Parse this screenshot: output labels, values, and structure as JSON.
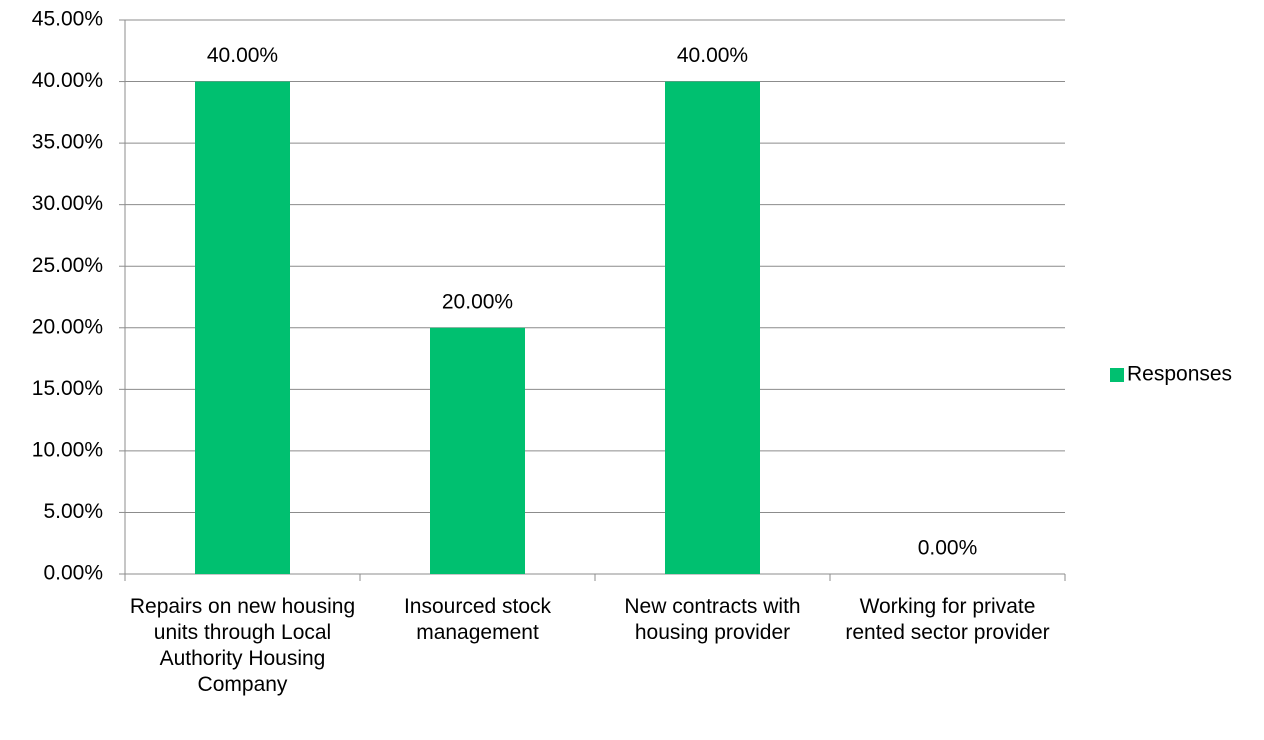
{
  "chart_data": {
    "type": "bar",
    "categories": [
      "Repairs on new housing units through Local Authority Housing Company",
      "Insourced stock management",
      "New contracts with housing provider",
      "Working for private rented sector provider"
    ],
    "series": [
      {
        "name": "Responses",
        "color": "#00c070",
        "values": [
          40,
          20,
          40,
          0
        ],
        "value_labels": [
          "40.00%",
          "20.00%",
          "40.00%",
          "0.00%"
        ]
      }
    ],
    "ylim": [
      0,
      45
    ],
    "yticks": [
      {
        "value": 0,
        "label": "0.00%"
      },
      {
        "value": 5,
        "label": "5.00%"
      },
      {
        "value": 10,
        "label": "10.00%"
      },
      {
        "value": 15,
        "label": "15.00%"
      },
      {
        "value": 20,
        "label": "20.00%"
      },
      {
        "value": 25,
        "label": "25.00%"
      },
      {
        "value": 30,
        "label": "30.00%"
      },
      {
        "value": 35,
        "label": "35.00%"
      },
      {
        "value": 40,
        "label": "40.00%"
      },
      {
        "value": 45,
        "label": "45.00%"
      }
    ],
    "grid": true,
    "legend": "right"
  }
}
